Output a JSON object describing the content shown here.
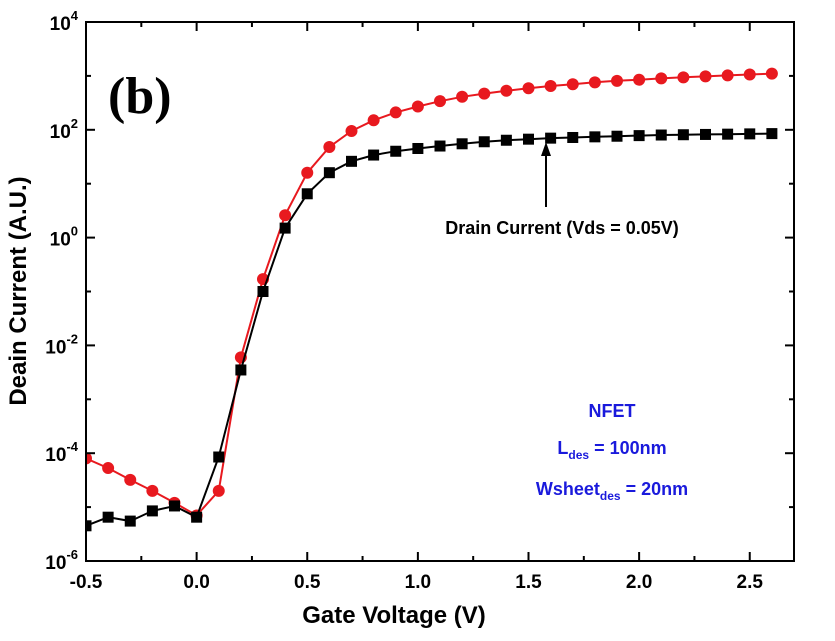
{
  "chart_data": {
    "type": "line",
    "panel_label": "(b)",
    "xlabel": "Gate Voltage (V)",
    "ylabel": "Deain Current (A.U.)",
    "xlim": [
      -0.5,
      2.7
    ],
    "ylim": [
      1e-06,
      10000
    ],
    "yscale": "log",
    "x_ticks": [
      "-0.5",
      "0.0",
      "0.5",
      "1.0",
      "1.5",
      "2.0",
      "2.5"
    ],
    "x_tick_values": [
      -0.5,
      0.0,
      0.5,
      1.0,
      1.5,
      2.0,
      2.5
    ],
    "y_ticks": [
      {
        "base": "10",
        "exp": "-6",
        "value": 1e-06
      },
      {
        "base": "10",
        "exp": "-4",
        "value": 0.0001
      },
      {
        "base": "10",
        "exp": "-2",
        "value": 0.01
      },
      {
        "base": "10",
        "exp": "0",
        "value": 1
      },
      {
        "base": "10",
        "exp": "2",
        "value": 100
      },
      {
        "base": "10",
        "exp": "4",
        "value": 10000
      }
    ],
    "grid": false,
    "series": [
      {
        "marker": "circle",
        "color": "#e8191f",
        "x": [
          -0.5,
          -0.4,
          -0.3,
          -0.2,
          -0.1,
          0.0,
          0.1,
          0.2,
          0.3,
          0.4,
          0.5,
          0.6,
          0.7,
          0.8,
          0.9,
          1.0,
          1.1,
          1.2,
          1.3,
          1.4,
          1.5,
          1.6,
          1.7,
          1.8,
          1.9,
          2.0,
          2.1,
          2.2,
          2.3,
          2.4,
          2.5,
          2.6
        ],
        "y": [
          8e-05,
          5.3e-05,
          3.2e-05,
          2e-05,
          1.2e-05,
          7e-06,
          2e-05,
          0.006,
          0.17,
          2.6,
          16,
          48,
          95,
          150,
          210,
          270,
          340,
          410,
          470,
          530,
          590,
          650,
          700,
          760,
          810,
          850,
          900,
          940,
          980,
          1020,
          1060,
          1100
        ]
      },
      {
        "marker": "square",
        "color": "#000000",
        "x": [
          -0.5,
          -0.4,
          -0.3,
          -0.2,
          -0.1,
          0.0,
          0.1,
          0.2,
          0.3,
          0.4,
          0.5,
          0.6,
          0.7,
          0.8,
          0.9,
          1.0,
          1.1,
          1.2,
          1.3,
          1.4,
          1.5,
          1.6,
          1.7,
          1.8,
          1.9,
          2.0,
          2.1,
          2.2,
          2.3,
          2.4,
          2.5,
          2.6
        ],
        "y": [
          4.5e-06,
          6.5e-06,
          5.5e-06,
          8.5e-06,
          1.05e-05,
          6.5e-06,
          8.5e-05,
          0.0035,
          0.1,
          1.5,
          6.5,
          16,
          26,
          34,
          40,
          45,
          50,
          55,
          60,
          64,
          67,
          70,
          72,
          74,
          76,
          78,
          80,
          81,
          82,
          83,
          84,
          85
        ]
      }
    ],
    "annotations": {
      "drain_label": "Drain Current (Vds = 0.05V)",
      "device_type": "NFET",
      "l_main": "L",
      "l_sub": "des",
      "l_value": " = 100nm",
      "w_main": "Wsheet",
      "w_sub": "des",
      "w_value": " = 20nm",
      "annotation_color": "#1a1adc"
    }
  }
}
